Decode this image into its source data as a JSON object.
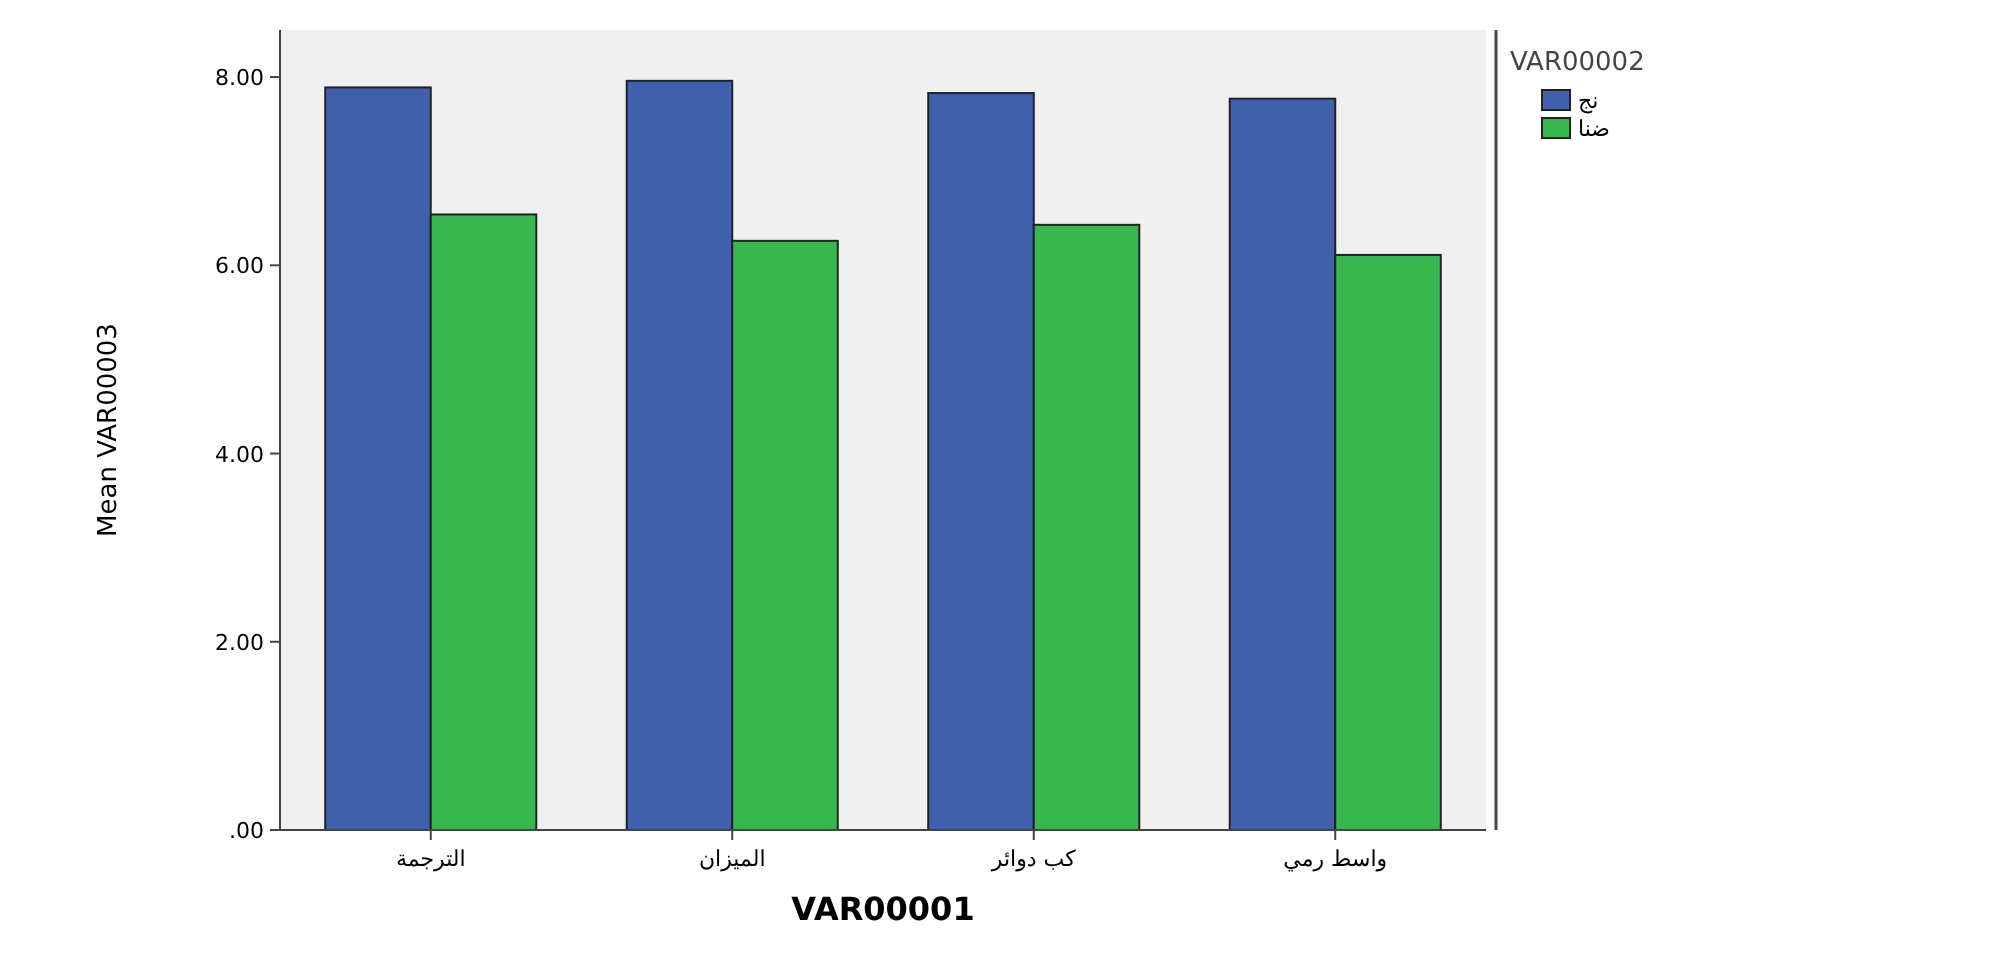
{
  "chart_data": {
    "type": "bar",
    "xlabel": "VAR00001",
    "ylabel": "Mean VAR00003",
    "legend_title": "VAR00002",
    "categories": [
      "الترجمة",
      "الميزان",
      "كب دوائر",
      "واسط رمي"
    ],
    "series": [
      {
        "name": "نج",
        "color": "#4060ae",
        "values": [
          7.89,
          7.96,
          7.83,
          7.77
        ]
      },
      {
        "name": "ضنا",
        "color": "#36b84e",
        "values": [
          6.54,
          6.26,
          6.43,
          6.11
        ]
      }
    ],
    "ylim": [
      0,
      8.5
    ],
    "yticks": [
      {
        "value": 0,
        "label": ".00"
      },
      {
        "value": 2,
        "label": "2.00"
      },
      {
        "value": 4,
        "label": "4.00"
      },
      {
        "value": 6,
        "label": "6.00"
      },
      {
        "value": 8,
        "label": "8.00"
      }
    ],
    "grid": false,
    "legend": "right"
  }
}
